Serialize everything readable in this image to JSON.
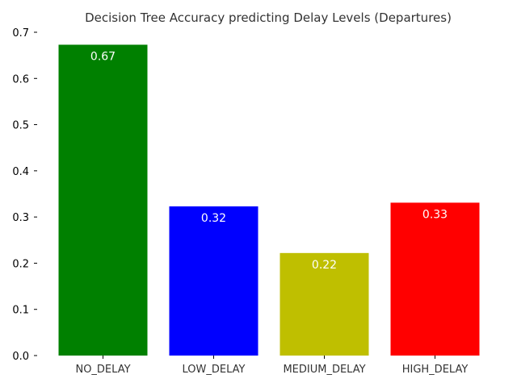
{
  "chart_data": {
    "type": "bar",
    "title": "Decision Tree Accuracy predicting Delay Levels (Departures)",
    "xlabel": "",
    "ylabel": "",
    "categories": [
      "NO_DELAY",
      "LOW_DELAY",
      "MEDIUM_DELAY",
      "HIGH_DELAY"
    ],
    "values": [
      0.673,
      0.323,
      0.222,
      0.331
    ],
    "value_labels": [
      "0.67",
      "0.32",
      "0.22",
      "0.33"
    ],
    "colors": [
      "#008000",
      "#0000ff",
      "#bfbf00",
      "#ff0000"
    ],
    "ylim": [
      0,
      0.7
    ],
    "yticks": [
      0.0,
      0.1,
      0.2,
      0.3,
      0.4,
      0.5,
      0.6,
      0.7
    ],
    "ytick_labels": [
      "0.0",
      "0.1",
      "0.2",
      "0.3",
      "0.4",
      "0.5",
      "0.6",
      "0.7"
    ],
    "grid": false,
    "legend": "none"
  }
}
